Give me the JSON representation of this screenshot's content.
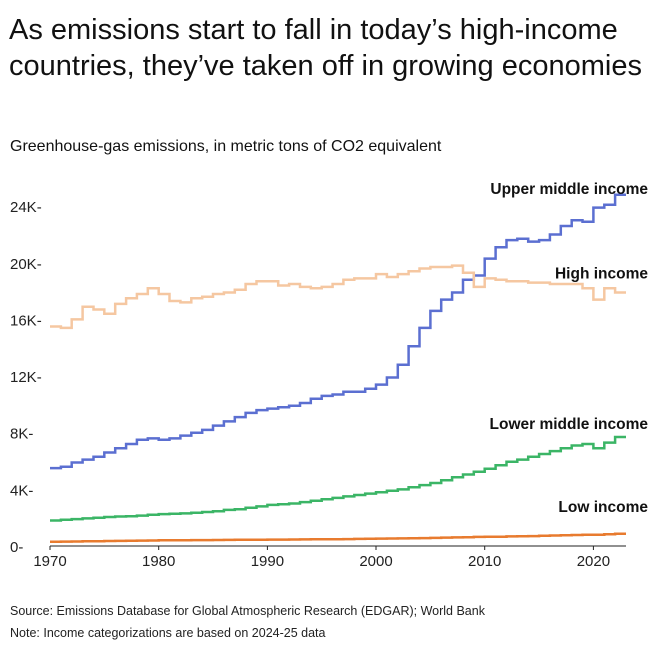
{
  "title": "As emissions start to fall in today’s high-income countries, they’ve taken off in growing economies",
  "subtitle": "Greenhouse-gas emissions, in metric tons of CO2 equivalent",
  "footnotes": {
    "source": "Source: Emissions Database for Global Atmospheric Research (EDGAR); World Bank",
    "note": "Note: Income categorizations are based on 2024-25 data"
  },
  "chart_data": {
    "type": "line",
    "step": true,
    "x_range": [
      1970,
      2023
    ],
    "ylim": [
      0,
      25000
    ],
    "x_ticks": [
      1970,
      1980,
      1990,
      2000,
      2010,
      2020
    ],
    "y_ticks": [
      {
        "value": 0,
        "label": "0-"
      },
      {
        "value": 4000,
        "label": "4K-"
      },
      {
        "value": 8000,
        "label": "8K-"
      },
      {
        "value": 12000,
        "label": "12K-"
      },
      {
        "value": 16000,
        "label": "16K-"
      },
      {
        "value": 20000,
        "label": "20K-"
      },
      {
        "value": 24000,
        "label": "24K-"
      }
    ],
    "grid": false,
    "x": [
      1970,
      1971,
      1972,
      1973,
      1974,
      1975,
      1976,
      1977,
      1978,
      1979,
      1980,
      1981,
      1982,
      1983,
      1984,
      1985,
      1986,
      1987,
      1988,
      1989,
      1990,
      1991,
      1992,
      1993,
      1994,
      1995,
      1996,
      1997,
      1998,
      1999,
      2000,
      2001,
      2002,
      2003,
      2004,
      2005,
      2006,
      2007,
      2008,
      2009,
      2010,
      2011,
      2012,
      2013,
      2014,
      2015,
      2016,
      2017,
      2018,
      2019,
      2020,
      2021,
      2022
    ],
    "series": [
      {
        "name": "Upper middle income",
        "color": "#5b6fd1",
        "values": [
          5500,
          5600,
          5900,
          6100,
          6300,
          6600,
          6900,
          7200,
          7500,
          7600,
          7500,
          7600,
          7800,
          8000,
          8200,
          8500,
          8800,
          9100,
          9400,
          9600,
          9700,
          9800,
          9900,
          10100,
          10400,
          10600,
          10700,
          10900,
          10900,
          11100,
          11400,
          11900,
          12800,
          14100,
          15400,
          16600,
          17400,
          17900,
          18800,
          19100,
          20300,
          21100,
          21600,
          21700,
          21500,
          21600,
          22000,
          22600,
          23000,
          22900,
          23900,
          24100,
          24800
        ]
      },
      {
        "name": "High income",
        "color": "#f5c7a1",
        "values": [
          15500,
          15400,
          16000,
          16900,
          16700,
          16400,
          17100,
          17500,
          17800,
          18200,
          17800,
          17300,
          17200,
          17500,
          17600,
          17800,
          17900,
          18100,
          18500,
          18700,
          18700,
          18400,
          18500,
          18300,
          18200,
          18300,
          18500,
          18800,
          18900,
          18900,
          19200,
          19000,
          19200,
          19400,
          19600,
          19700,
          19700,
          19800,
          19300,
          18300,
          18900,
          18800,
          18700,
          18700,
          18600,
          18600,
          18500,
          18500,
          18500,
          18200,
          17400,
          18200,
          17900
        ]
      },
      {
        "name": "Lower middle income",
        "color": "#3bb566",
        "values": [
          1800,
          1850,
          1900,
          1950,
          2000,
          2050,
          2080,
          2100,
          2150,
          2200,
          2250,
          2280,
          2300,
          2350,
          2400,
          2450,
          2550,
          2600,
          2700,
          2800,
          2900,
          2950,
          3000,
          3100,
          3200,
          3300,
          3400,
          3500,
          3600,
          3700,
          3800,
          3900,
          4000,
          4150,
          4300,
          4450,
          4650,
          4850,
          5050,
          5250,
          5450,
          5700,
          5950,
          6100,
          6300,
          6500,
          6700,
          6900,
          7100,
          7200,
          6900,
          7300,
          7700
        ]
      },
      {
        "name": "Low income",
        "color": "#e87b2f",
        "values": [
          300,
          310,
          320,
          330,
          340,
          350,
          360,
          370,
          380,
          390,
          400,
          405,
          410,
          415,
          420,
          425,
          430,
          435,
          440,
          445,
          450,
          455,
          460,
          465,
          470,
          475,
          480,
          490,
          500,
          510,
          520,
          530,
          540,
          550,
          560,
          575,
          590,
          605,
          620,
          640,
          650,
          660,
          680,
          690,
          700,
          720,
          740,
          760,
          780,
          800,
          800,
          830,
          860
        ]
      }
    ]
  }
}
